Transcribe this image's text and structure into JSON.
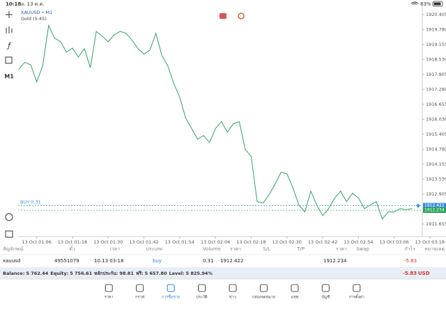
{
  "status_bar": {
    "time": "10:18",
    "date": "อ. 13 ต.ค.",
    "battery": "83%"
  },
  "toolbar": {
    "timeframe": "M1"
  },
  "chart_data": {
    "type": "line",
    "title": "XAUUSD • M1",
    "subtitle": "Gold (5-45)",
    "categories": [
      null,
      null,
      null,
      "13 Oct 01:06",
      null,
      null,
      null,
      null,
      null,
      "13 Oct 01:18",
      null,
      null,
      null,
      null,
      null,
      "13 Oct 01:30",
      null,
      null,
      null,
      null,
      null,
      "13 Oct 01:42",
      null,
      null,
      null,
      null,
      null,
      "13 Oct 01:54",
      null,
      null,
      null,
      null,
      null,
      "13 Oct 02:06",
      null,
      null,
      null,
      null,
      null,
      "13 Oct 02:18",
      null,
      null,
      null,
      null,
      null,
      "13 Oct 02:30",
      null,
      null,
      null,
      null,
      null,
      "13 Oct 02:42",
      null,
      null,
      null,
      null,
      null,
      "13 Oct 02:54",
      null,
      null,
      null,
      null,
      null,
      "13 Oct 03:06",
      null,
      null,
      null,
      null,
      null,
      "13 Oct 03:18"
    ],
    "values": [
      1918.12,
      1918.41,
      1918.3,
      1917.59,
      1918.25,
      1919.94,
      1919.42,
      1919.27,
      1918.83,
      1919.0,
      1918.63,
      1918.98,
      1918.19,
      1919.7,
      1919.5,
      1919.27,
      1919.56,
      1919.7,
      1919.62,
      1919.33,
      1918.98,
      1918.75,
      1918.92,
      1919.62,
      1918.7,
      1918.26,
      1917.53,
      1916.95,
      1916.08,
      1915.64,
      1915.2,
      1915.35,
      1915.06,
      1915.64,
      1915.93,
      1915.49,
      1915.84,
      1915.93,
      1914.77,
      1914.48,
      1912.59,
      1912.53,
      1912.88,
      1913.32,
      1913.81,
      1913.75,
      1913.17,
      1912.45,
      1912.16,
      1913.03,
      1912.45,
      1912.01,
      1912.3,
      1912.74,
      1913.03,
      1912.59,
      1912.94,
      1912.74,
      1912.3,
      1912.45,
      1912.59,
      1911.86,
      1912.16,
      1912.16,
      1912.3,
      1912.25,
      1912.3,
      null,
      null,
      null
    ],
    "color": "#3daa6e",
    "ylim": [
      1911.19,
      1920.72
    ],
    "yticks": [
      {
        "value": 1920.405,
        "label": "1920.405"
      },
      {
        "value": 1919.78,
        "label": "1919.780"
      },
      {
        "value": 1919.155,
        "label": "1919.155"
      },
      {
        "value": 1918.53,
        "label": "1918.530"
      },
      {
        "value": 1917.905,
        "label": "1917.905"
      },
      {
        "value": 1917.28,
        "label": "1917.280"
      },
      {
        "value": 1916.655,
        "label": "1916.655"
      },
      {
        "value": 1916.03,
        "label": "1916.030"
      },
      {
        "value": 1915.405,
        "label": "1915.405"
      },
      {
        "value": 1914.78,
        "label": "1914.780"
      },
      {
        "value": 1914.155,
        "label": "1914.155"
      },
      {
        "value": 1913.53,
        "label": "1913.530"
      },
      {
        "value": 1912.905,
        "label": "1912.905"
      },
      {
        "value": 1911.655,
        "label": "1911.655"
      }
    ],
    "grid": false,
    "price_lines": [
      {
        "text": "BUY 0.31",
        "value": 1912.422,
        "color": "#3a8fd8"
      },
      {
        "value": 1912.234,
        "color": "#26a65b"
      }
    ]
  },
  "positions_table": {
    "headers": [
      "สัญลักษณ์",
      "ตั๋ว",
      "เวลา",
      "ประเภท",
      "Volume",
      "ราคา",
      "S/L",
      "T/P",
      "ราคา",
      "Swap",
      "กำไร",
      "หมายเหตุ"
    ],
    "row": {
      "symbol": "xauusd",
      "ticket": "49551079",
      "time": "10.13 03:18",
      "type": "buy",
      "volume": "0.31",
      "price": "1912.422",
      "current_price": "1912.234",
      "profit": "-5.83"
    }
  },
  "account": {
    "items": [
      {
        "label": "Balance:",
        "value": "5 762.44"
      },
      {
        "label": "Equity:",
        "value": "5 756.61"
      },
      {
        "label": "หลักประกัน:",
        "value": "98.81"
      },
      {
        "label": "ฟรี:",
        "value": "5 657.80"
      },
      {
        "label": "Level:",
        "value": "5 825.94%"
      }
    ],
    "profit": "-5.83",
    "currency": "USD"
  },
  "nav": {
    "tabs": [
      "ราคา",
      "กราฟ",
      "การซื้อขาย",
      "ประวัติ",
      "ข่าว",
      "กล่องจดหมาย",
      "แชท",
      "บัญชี",
      "การตั้งค่า"
    ]
  }
}
